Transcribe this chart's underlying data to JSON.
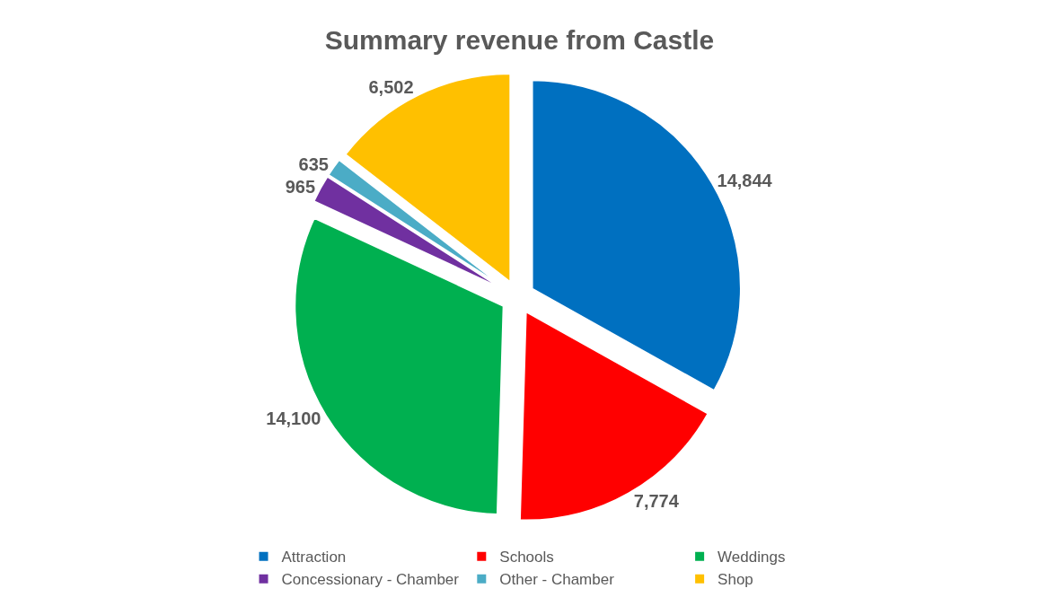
{
  "chart_data": {
    "type": "pie",
    "title": "Summary revenue from Castle",
    "categories": [
      "Attraction",
      "Schools",
      "Weddings",
      "Concessionary - Chamber",
      "Other - Chamber",
      "Shop"
    ],
    "values": [
      14844,
      7774,
      14100,
      965,
      635,
      6502
    ],
    "colors": [
      "#0070c0",
      "#ff0000",
      "#00b050",
      "#7030a0",
      "#4bacc6",
      "#ffc000"
    ],
    "value_labels": [
      "14,844",
      "7,774",
      "14,100",
      "965",
      "635",
      "6,502"
    ],
    "legend": "bottom"
  }
}
